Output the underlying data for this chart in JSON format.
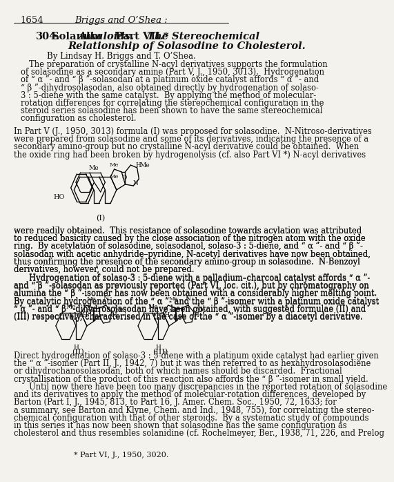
{
  "page_num": "1654",
  "header": "Briggs and O’Shea :",
  "title1a": "304.",
  "title1b": "Solanum ",
  "title1c": "Alkaloids.",
  "title1d": "  Part VII.*",
  "title1e": " The Stereochemical",
  "title2": "Relationship of Solasodine to Cholesterol.",
  "byline": "By Lindsay H. Briggs and T. O’Shea.",
  "abstract": [
    [
      48,
      "The preparation of crystalline N-acyl derivatives supports the formulation"
    ],
    [
      30,
      "of solasodine as a secondary amine (Part V, J., 1950, 3013).  Hydrogenation"
    ],
    [
      30,
      "of “ α ”- and “ β ”-solasodan at a platinum oxide catalyst affords “ α ”- and"
    ],
    [
      30,
      "“ β ”-dihydrosolasodan, also obtained directly by hydrogenation of solaso-"
    ],
    [
      30,
      "3 : 5-diene with the same catalyst.  By applying the method of molecular-"
    ],
    [
      30,
      "rotation differences for correlating the stereochemical configuration in the"
    ],
    [
      30,
      "steroid series solasodine has been shown to have the same stereochemical"
    ],
    [
      30,
      "configuration as cholesterol."
    ]
  ],
  "para1": [
    [
      15,
      "In Part V (J., 1950, 3013) formula (I) was proposed for solasodine.  N-Nitroso-derivatives"
    ],
    [
      15,
      "were prepared from solasodine and some of its derivatives, indicating the presence of a"
    ],
    [
      15,
      "secondary amino-group but no crystalline N-acyl derivative could be obtained.  When"
    ],
    [
      15,
      "the oxide ring had been broken by hydrogenolysis (cf. also Part VI *) N-acyl derivatives"
    ]
  ],
  "para2": [
    [
      15,
      "were readily obtained.  This resistance of solasodine towards acylation was attributed"
    ],
    [
      15,
      "to reduced basicity caused by the close association of the nitrogen atom with the oxide"
    ],
    [
      15,
      "ring.  By acetylation of solasodine, solasodanol, solaso-3 : 5-diene, and “ α ”- and “ β ”-"
    ],
    [
      15,
      "solasodan with acetic anhydride–pyridine, N-acetyl derivatives have now been obtained,"
    ],
    [
      15,
      "thus confirming the presence of the secondary amino-group in solasodine.  N-Benzoyl"
    ],
    [
      15,
      "derivatives, however, could not be prepared."
    ]
  ],
  "para3": [
    [
      48,
      "Hydrogenation of solaso-3 : 5-diene with a palladium–charcoal catalyst affords “ α ”-"
    ],
    [
      15,
      "and “ β ”-solasodan as previously reported (Part VI, loc. cit.), but by chromatography on"
    ],
    [
      15,
      "alumina the “ β ”-isomer has now been obtained with a considerably higher melting point."
    ],
    [
      15,
      "By catalytic hydrogenation of the “ α ”- and the “ β ”-isomer with a platinum oxide catalyst"
    ],
    [
      15,
      "“ α ”- and “ β ”-dihydrosolasodan have been obtained, with suggested formulae (II) and"
    ],
    [
      15,
      "(III) respectively, characterised in the case of the “ α ”-isomer by a diacetyl derivative."
    ]
  ],
  "para4": [
    [
      15,
      "Direct hydrogenation of solaso-3 : 5-diene with a platinum oxide catalyst had earlier given"
    ],
    [
      15,
      "the “ α ”-isomer (Part II, J., 1942, 7) but it was then referred to as hexahydrosolasodiene"
    ],
    [
      15,
      "or dihydrochanosolasodan, both of which names should be discarded.  Fractional"
    ],
    [
      15,
      "crystallisation of the product of this reaction also affords the “ β ”-isomer in small yield."
    ]
  ],
  "para5": [
    [
      48,
      "Until now there have been too many discrepancies in the reported rotation of solasodine"
    ],
    [
      15,
      "and its derivatives to apply the method of molecular-rotation differences, developed by"
    ],
    [
      15,
      "Barton (Part I, J., 1945, 813, to Part 16, J. Amer. Chem. Soc., 1950, 72, 1633; for"
    ],
    [
      15,
      "a summary, see Barton and Klyne, Chem. and Ind., 1948, 755), for correlating the stereo-"
    ],
    [
      15,
      "chemical configuration with that of other steroids.  By a systematic study of compounds"
    ],
    [
      15,
      "in this series it has now been shown that solasodine has the same configuration as"
    ],
    [
      15,
      "cholesterol and thus resembles solanidine (cf. Rochelmeyer, Ber., 1938, 71, 226, and Prelog"
    ]
  ],
  "footnote": "* Part VI, J., 1950, 3020.",
  "bg": "#f4f2ed",
  "tc": "#111111",
  "lh": 11.2,
  "fs_body": 8.3
}
